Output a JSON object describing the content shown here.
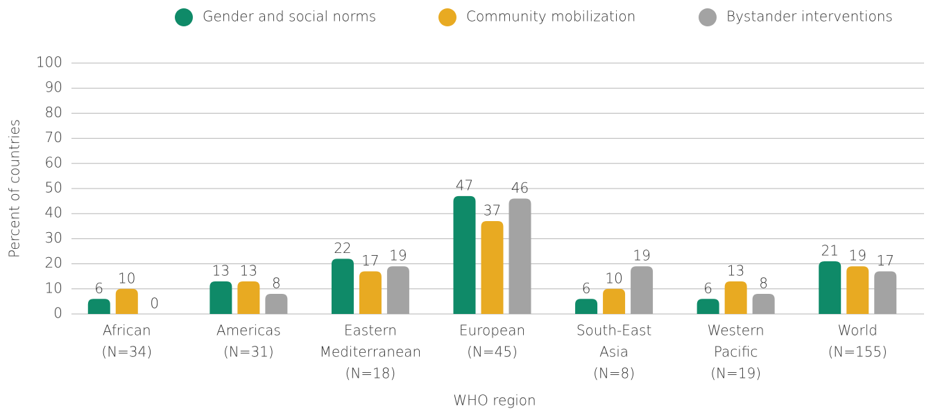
{
  "chart_data": {
    "type": "bar",
    "x_label": "WHO region",
    "y_label": "Percent of countries",
    "categories": [
      [
        "African",
        "(N=34)"
      ],
      [
        "Americas",
        "(N=31)"
      ],
      [
        "Eastern",
        "Mediterranean",
        "(N=18)"
      ],
      [
        "European",
        "(N=45)"
      ],
      [
        "South-East",
        "Asia",
        "(N=8)"
      ],
      [
        "Western",
        "Pacific",
        "(N=19)"
      ],
      [
        "World",
        "(N=155)"
      ]
    ],
    "series": [
      {
        "name": "Gender and social norms",
        "color": "#0f8a68",
        "values": [
          6,
          13,
          22,
          47,
          6,
          6,
          21
        ]
      },
      {
        "name": "Community mobilization",
        "color": "#e8aa22",
        "values": [
          10,
          13,
          17,
          37,
          10,
          13,
          19
        ]
      },
      {
        "name": "Bystander interventions",
        "color": "#a3a3a3",
        "values": [
          0,
          8,
          19,
          46,
          19,
          8,
          17
        ]
      }
    ],
    "ylim": [
      0,
      100
    ],
    "yticks": [
      0,
      10,
      20,
      30,
      40,
      50,
      60,
      70,
      80,
      90,
      100
    ],
    "grid": true,
    "legend": "top"
  }
}
